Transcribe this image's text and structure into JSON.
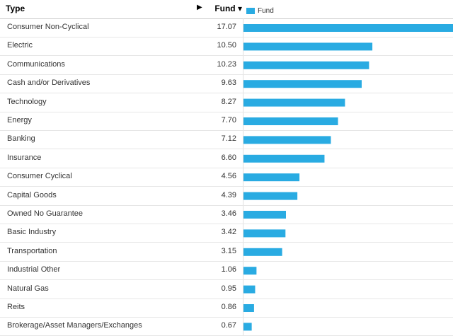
{
  "header": {
    "type_label": "Type",
    "sort_arrow": "▶",
    "fund_label": "Fund ▾"
  },
  "colors": {
    "bar": "#29abe2"
  },
  "chart_data": {
    "type": "bar",
    "orientation": "horizontal",
    "legend": {
      "entries": [
        "Fund"
      ],
      "placement": "top-left"
    },
    "categories": [
      "Consumer Non-Cyclical",
      "Electric",
      "Communications",
      "Cash and/or Derivatives",
      "Technology",
      "Energy",
      "Banking",
      "Insurance",
      "Consumer Cyclical",
      "Capital Goods",
      "Owned No Guarantee",
      "Basic Industry",
      "Transportation",
      "Industrial Other",
      "Natural Gas",
      "Reits",
      "Brokerage/Asset Managers/Exchanges"
    ],
    "value_labels": [
      "17.07",
      "10.50",
      "10.23",
      "9.63",
      "8.27",
      "7.70",
      "7.12",
      "6.60",
      "4.56",
      "4.39",
      "3.46",
      "3.42",
      "3.15",
      "1.06",
      "0.95",
      "0.86",
      "0.67"
    ],
    "series": [
      {
        "name": "Fund",
        "values": [
          17.07,
          10.5,
          10.23,
          9.63,
          8.27,
          7.7,
          7.12,
          6.6,
          4.56,
          4.39,
          3.46,
          3.42,
          3.15,
          1.06,
          0.95,
          0.86,
          0.67
        ]
      }
    ],
    "xlim": [
      0,
      17.07
    ],
    "grid": false
  }
}
